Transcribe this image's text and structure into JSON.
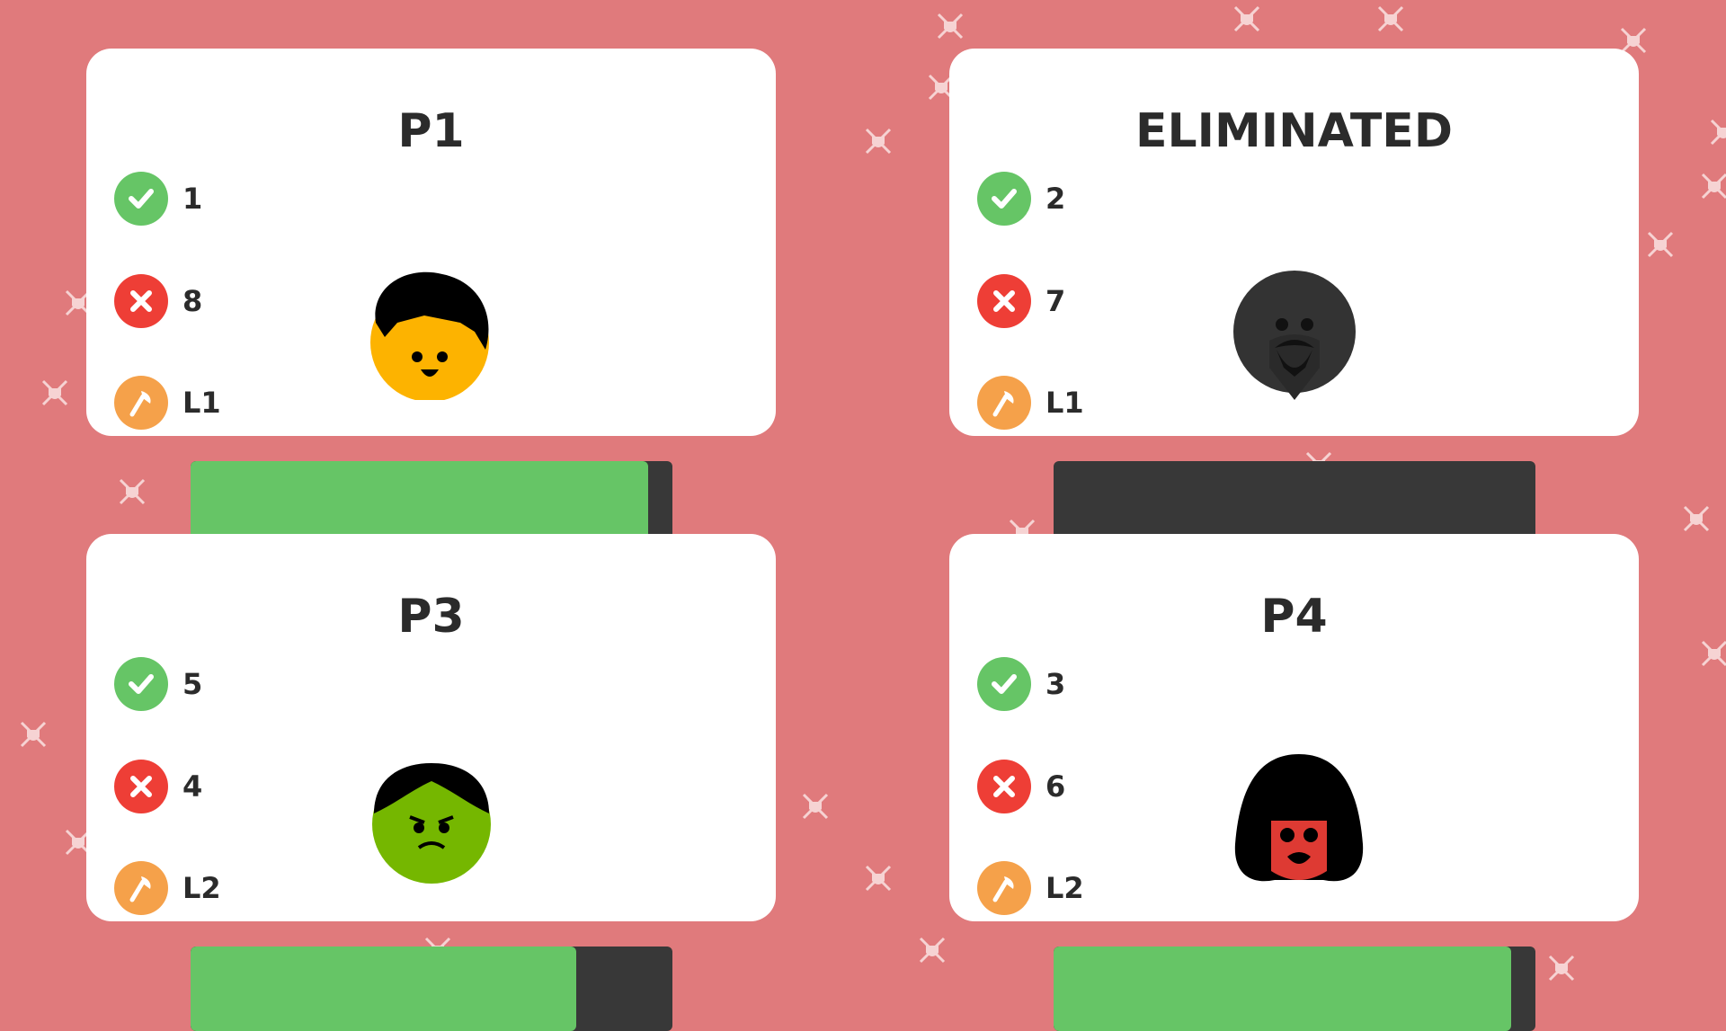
{
  "colors": {
    "background": "#e07a7c",
    "correct": "#66c566",
    "wrong": "#ee3e36",
    "level": "#f5a14a",
    "bar_track": "#383838",
    "bar_fill": "#66c566"
  },
  "players": [
    {
      "title": "P1",
      "correct": "1",
      "wrong": "8",
      "level": "L1",
      "health": 0.95,
      "avatar": "boy-yellow-face",
      "eliminated": false
    },
    {
      "title": "ELIMINATED",
      "correct": "2",
      "wrong": "7",
      "level": "L1",
      "health": 0,
      "avatar": "bearded-man-silhouette",
      "eliminated": true
    },
    {
      "title": "P3",
      "correct": "5",
      "wrong": "4",
      "level": "L2",
      "health": 0.8,
      "avatar": "grumpy-green-face",
      "eliminated": false
    },
    {
      "title": "P4",
      "correct": "3",
      "wrong": "6",
      "level": "L2",
      "health": 0.95,
      "avatar": "girl-red-face",
      "eliminated": false
    }
  ],
  "icons": {
    "correct": "check-icon",
    "wrong": "x-icon",
    "level": "axe-icon",
    "decor": "crossed-swords-shield-icon"
  }
}
